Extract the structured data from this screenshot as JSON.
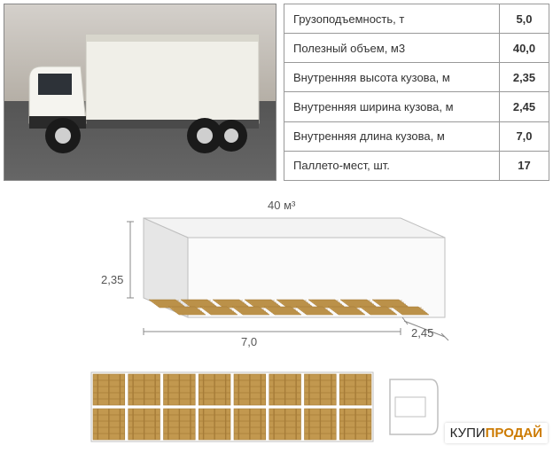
{
  "specs": [
    {
      "label": "Грузоподъемность, т",
      "value": "5,0"
    },
    {
      "label": "Полезный объем, м3",
      "value": "40,0"
    },
    {
      "label": "Внутренняя высота кузова, м",
      "value": "2,35"
    },
    {
      "label": "Внутренняя ширина кузова, м",
      "value": "2,45"
    },
    {
      "label": "Внутренняя длина кузова, м",
      "value": "7,0"
    },
    {
      "label": "Паллето-мест, шт.",
      "value": "17"
    }
  ],
  "diagram": {
    "volume_label": "40 м³",
    "height_label": "2,35",
    "length_label": "7,0",
    "width_label": "2,45",
    "pallet_rows": 2,
    "pallet_cols_iso": 8,
    "pallet_cols_plan": 8,
    "colors": {
      "box_stroke": "#bfbfbf",
      "box_fill_light": "#f3f3f3",
      "box_fill_mid": "#e6e6e6",
      "dim_line": "#888888",
      "pallet_wood": "#c2984f",
      "pallet_wood_dark": "#a67c38",
      "text": "#555555"
    },
    "truck": {
      "cab_color": "#f5f4ef",
      "box_color": "#f0efe8",
      "chassis_color": "#2a2a2a",
      "wheel_color": "#1a1a1a",
      "rim_color": "#cfcfcf"
    }
  },
  "watermark": {
    "pre": "КУПИ",
    "post": "ПРОДАЙ"
  }
}
